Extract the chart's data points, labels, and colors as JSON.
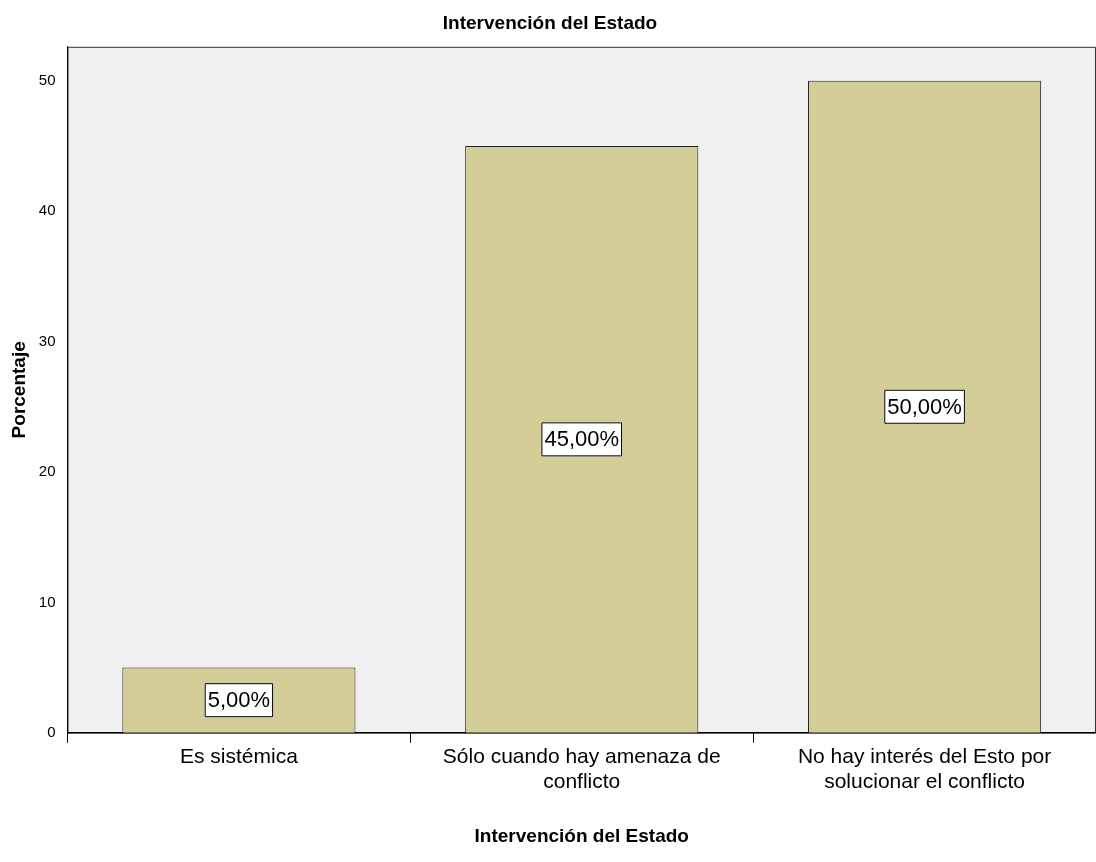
{
  "chart_data": {
    "type": "bar",
    "title": "Intervención del Estado",
    "xlabel": "Intervención del Estado",
    "ylabel": "Porcentaje",
    "categories": [
      "Es sistémica",
      "Sólo cuando hay amenaza de conflicto",
      "No hay interés del Esto por solucionar el conflicto"
    ],
    "values": [
      5,
      45,
      50
    ],
    "value_labels": [
      "5,00%",
      "45,00%",
      "50,00%"
    ],
    "color": "#d3ce98",
    "ylim": [
      0,
      52.6
    ],
    "yticks": [
      0,
      10,
      20,
      30,
      40,
      50
    ],
    "grid": false,
    "legend": false
  }
}
